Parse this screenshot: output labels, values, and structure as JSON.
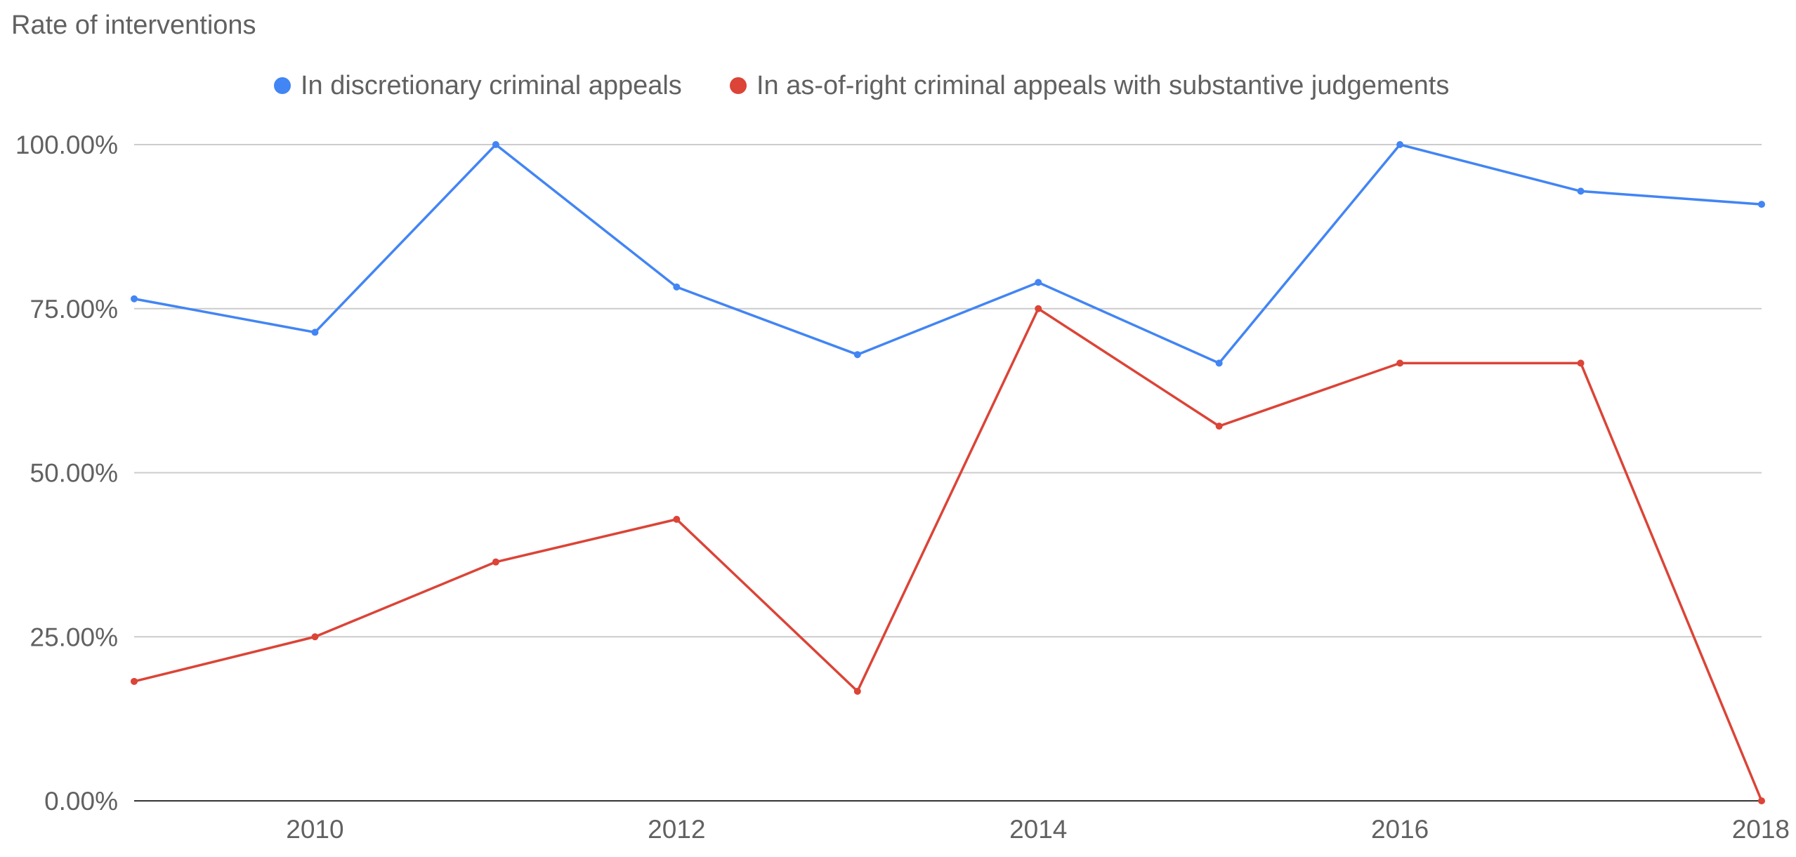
{
  "chart_data": {
    "type": "line",
    "title": "Rate of interventions",
    "xlabel": "",
    "ylabel": "",
    "x": [
      2009,
      2010,
      2011,
      2012,
      2013,
      2014,
      2015,
      2016,
      2017,
      2018
    ],
    "xlim": [
      2009,
      2018
    ],
    "ylim": [
      0,
      100
    ],
    "x_ticks": [
      "2010",
      "2012",
      "2014",
      "2016",
      "2018"
    ],
    "y_ticks": [
      "0.00%",
      "25.00%",
      "50.00%",
      "75.00%",
      "100.00%"
    ],
    "grid": true,
    "legend_position": "top",
    "series": [
      {
        "name": "In discretionary criminal appeals",
        "color": "#4285f4",
        "values": [
          76.5,
          71.4,
          100,
          78.3,
          68.0,
          79.0,
          66.7,
          100,
          92.9,
          90.9
        ]
      },
      {
        "name": "In as-of-right criminal appeals with substantive judgements",
        "color": "#db4437",
        "values": [
          18.2,
          25.0,
          36.4,
          42.9,
          16.7,
          75.0,
          57.1,
          66.7,
          66.7,
          0
        ]
      }
    ]
  }
}
